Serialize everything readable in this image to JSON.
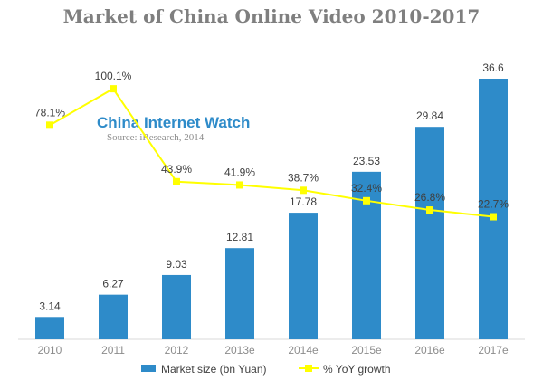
{
  "chart_data": {
    "type": "bar",
    "title": "Market of China Online Video 2010-2017",
    "categories": [
      "2010",
      "2011",
      "2012",
      "2013e",
      "2014e",
      "2015e",
      "2016e",
      "2017e"
    ],
    "series": [
      {
        "name": "Market size (bn Yuan)",
        "type": "bar",
        "values": [
          3.14,
          6.27,
          9.03,
          12.81,
          17.78,
          23.53,
          29.84,
          36.6
        ],
        "labels": [
          "3.14",
          "6.27",
          "9.03",
          "12.81",
          "17.78",
          "23.53",
          "29.84",
          "36.6"
        ],
        "color": "#2e8bc9"
      },
      {
        "name": "% YoY growth",
        "type": "line",
        "values": [
          78.1,
          100.1,
          43.9,
          41.9,
          38.7,
          32.4,
          26.8,
          22.7
        ],
        "labels": [
          "78.1%",
          "100.1%",
          "43.9%",
          "41.9%",
          "38.7%",
          "32.4%",
          "26.8%",
          "22.7%"
        ],
        "color": "#ffff00"
      }
    ],
    "watermark": {
      "title": "China Internet Watch",
      "source": "Source: iResearch, 2014"
    },
    "legend_position": "bottom",
    "grid": false
  }
}
